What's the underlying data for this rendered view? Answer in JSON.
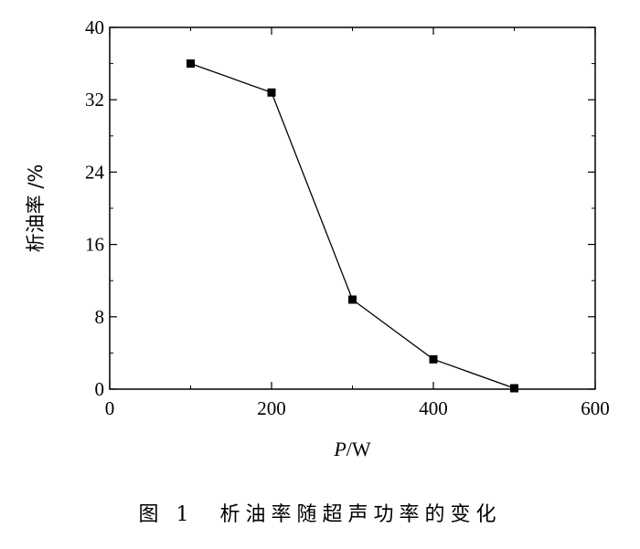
{
  "chart_data": {
    "type": "line",
    "xlabel_italic": "P",
    "xlabel_rest": "/W",
    "ylabel": "析油率 /%",
    "xlim": [
      0,
      600
    ],
    "ylim": [
      0,
      40
    ],
    "xticks": [
      0,
      200,
      400,
      600
    ],
    "yticks": [
      0,
      8,
      16,
      24,
      32,
      40
    ],
    "x": [
      100,
      200,
      300,
      400,
      500
    ],
    "y": [
      36.0,
      32.8,
      9.9,
      3.3,
      0.1
    ],
    "marker": "square",
    "line_color": "#000000",
    "grid": false
  },
  "caption": "图 1　析油率随超声功率的变化"
}
